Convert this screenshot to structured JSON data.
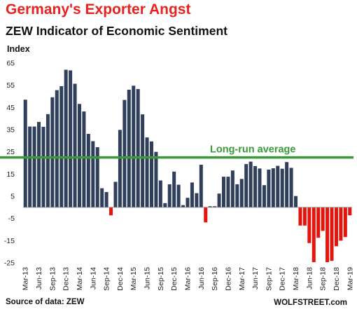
{
  "title": "Germany's Exporter Angst",
  "subtitle": "ZEW Indicator of Economic Sentiment",
  "source": "Source of data: ZEW",
  "credit": "WOLFSTREET.com",
  "colors": {
    "positive": "#2f3f5c",
    "negative": "#e3150c",
    "average": "#3a9a3a",
    "title": "#e8231f"
  },
  "chart_data": {
    "type": "bar",
    "ylabel": "Index",
    "ylim": [
      -25,
      65
    ],
    "yticks": [
      65,
      55,
      45,
      35,
      25,
      15,
      5,
      -5,
      -15,
      -25
    ],
    "grid": false,
    "categories": [
      "Mar-13",
      "Apr-13",
      "May-13",
      "Jun-13",
      "Jul-13",
      "Aug-13",
      "Sep-13",
      "Oct-13",
      "Nov-13",
      "Dec-13",
      "Jan-14",
      "Feb-14",
      "Mar-14",
      "Apr-14",
      "May-14",
      "Jun-14",
      "Jul-14",
      "Aug-14",
      "Sep-14",
      "Oct-14",
      "Nov-14",
      "Dec-14",
      "Jan-15",
      "Feb-15",
      "Mar-15",
      "Apr-15",
      "May-15",
      "Jun-15",
      "Jul-15",
      "Aug-15",
      "Sep-15",
      "Oct-15",
      "Nov-15",
      "Dec-15",
      "Jan-16",
      "Feb-16",
      "Mar-16",
      "Apr-16",
      "May-16",
      "Jun-16",
      "Jul-16",
      "Aug-16",
      "Sep-16",
      "Oct-16",
      "Nov-16",
      "Dec-16",
      "Jan-17",
      "Feb-17",
      "Mar-17",
      "Apr-17",
      "May-17",
      "Jun-17",
      "Jul-17",
      "Aug-17",
      "Sep-17",
      "Oct-17",
      "Nov-17",
      "Dec-17",
      "Jan-18",
      "Feb-18",
      "Mar-18",
      "Apr-18",
      "May-18",
      "Jun-18",
      "Jul-18",
      "Aug-18",
      "Sep-18",
      "Oct-18",
      "Nov-18",
      "Dec-18",
      "Jan-19",
      "Feb-19",
      "Mar-19"
    ],
    "xticks": [
      "Mar-13",
      "Jun-13",
      "Sep-13",
      "Dec-13",
      "Mar-14",
      "Jun-14",
      "Sep-14",
      "Dec-14",
      "Mar-15",
      "Jun-15",
      "Sep-15",
      "Dec-15",
      "Mar-16",
      "Jun-16",
      "Sep-16",
      "Dec-16",
      "Mar-17",
      "Jun-17",
      "Sep-17",
      "Dec-17",
      "Mar-18",
      "Jun-18",
      "Sep-18",
      "Dec-18",
      "Mar-19"
    ],
    "values": [
      48.5,
      36.4,
      36.4,
      38.5,
      36.3,
      42.0,
      49.6,
      52.8,
      54.6,
      62.0,
      61.7,
      55.7,
      46.6,
      43.2,
      33.1,
      29.8,
      27.1,
      8.6,
      6.9,
      -3.6,
      11.5,
      34.9,
      48.4,
      53.0,
      54.8,
      53.3,
      41.9,
      31.5,
      29.7,
      25.0,
      12.1,
      1.9,
      10.4,
      16.1,
      10.2,
      1.0,
      4.3,
      11.2,
      6.4,
      19.2,
      -6.8,
      0.5,
      0.5,
      6.2,
      13.8,
      13.8,
      16.6,
      10.4,
      12.8,
      19.5,
      20.6,
      18.6,
      17.5,
      10.0,
      17.0,
      17.6,
      18.7,
      17.4,
      20.4,
      17.8,
      5.1,
      -8.2,
      -8.2,
      -16.1,
      -24.7,
      -13.7,
      -10.6,
      -24.7,
      -24.1,
      -17.5,
      -15.0,
      -13.4,
      -3.6
    ],
    "average": {
      "label": "Long-run average",
      "value": 22.5
    }
  }
}
